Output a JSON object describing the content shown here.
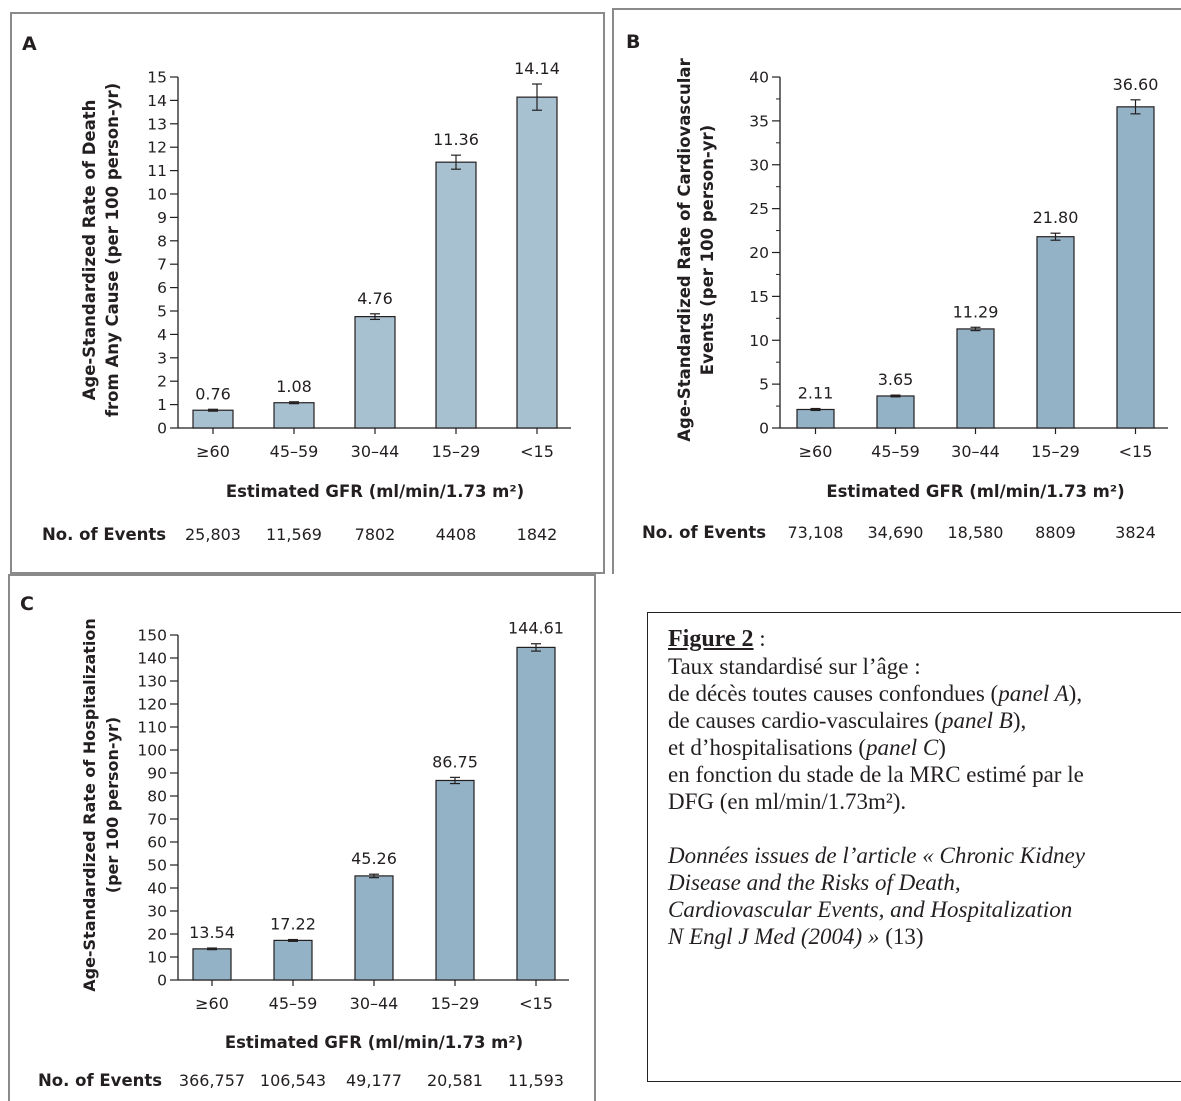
{
  "chart_data": [
    {
      "type": "bar",
      "panel": "A",
      "ylabel": [
        "Age-Standardized Rate of Death",
        "from Any Cause (per 100 person-yr)"
      ],
      "xlabel": "Estimated GFR (ml/min/1.73 m²)",
      "categories": [
        "≥60",
        "45–59",
        "30–44",
        "15–29",
        "<15"
      ],
      "values": [
        0.76,
        1.08,
        4.76,
        11.36,
        14.14
      ],
      "value_labels": [
        "0.76",
        "1.08",
        "4.76",
        "11.36",
        "14.14"
      ],
      "error_bars": [
        [
          0.72,
          0.8
        ],
        [
          1.04,
          1.12
        ],
        [
          4.64,
          4.88
        ],
        [
          11.06,
          11.66
        ],
        [
          13.58,
          14.7
        ]
      ],
      "ylim": [
        0,
        15
      ],
      "yticks": [
        "0",
        "1",
        "2",
        "3",
        "4",
        "5",
        "6",
        "7",
        "8",
        "9",
        "10",
        "11",
        "12",
        "13",
        "14",
        "15"
      ],
      "events_label": "No. of Events",
      "events": [
        "25,803",
        "11,569",
        "7802",
        "4408",
        "1842"
      ],
      "bar_color": "#a8c1d1"
    },
    {
      "type": "bar",
      "panel": "B",
      "ylabel": [
        "Age-Standardized Rate of Cardiovascular",
        "Events (per 100 person-yr)"
      ],
      "xlabel": "Estimated GFR (ml/min/1.73 m²)",
      "categories": [
        "≥60",
        "45–59",
        "30–44",
        "15–29",
        "<15"
      ],
      "values": [
        2.11,
        3.65,
        11.29,
        21.8,
        36.6
      ],
      "value_labels": [
        "2.11",
        "3.65",
        "11.29",
        "21.80",
        "36.60"
      ],
      "error_bars": [
        [
          2.0,
          2.22
        ],
        [
          3.55,
          3.75
        ],
        [
          11.1,
          11.48
        ],
        [
          21.4,
          22.2
        ],
        [
          35.8,
          37.4
        ]
      ],
      "ylim": [
        0,
        40
      ],
      "yticks": [
        "0",
        "5",
        "10",
        "15",
        "20",
        "25",
        "30",
        "35",
        "40"
      ],
      "events_label": "No. of Events",
      "events": [
        "73,108",
        "34,690",
        "18,580",
        "8809",
        "3824"
      ],
      "bar_color": "#94b2c6"
    },
    {
      "type": "bar",
      "panel": "C",
      "ylabel": [
        "Age-Standardized Rate of Hospitalization",
        "(per 100 person-yr)"
      ],
      "xlabel": "Estimated GFR (ml/min/1.73 m²)",
      "categories": [
        "≥60",
        "45–59",
        "30–44",
        "15–29",
        "<15"
      ],
      "values": [
        13.54,
        17.22,
        45.26,
        86.75,
        144.61
      ],
      "value_labels": [
        "13.54",
        "17.22",
        "45.26",
        "86.75",
        "144.61"
      ],
      "error_bars": [
        [
          13.2,
          13.9
        ],
        [
          16.8,
          17.6
        ],
        [
          44.5,
          46.0
        ],
        [
          85.4,
          88.1
        ],
        [
          143.0,
          146.2
        ]
      ],
      "ylim": [
        0,
        150
      ],
      "yticks": [
        "0",
        "10",
        "20",
        "30",
        "40",
        "50",
        "60",
        "70",
        "80",
        "90",
        "100",
        "110",
        "120",
        "130",
        "140",
        "150"
      ],
      "events_label": "No. of Events",
      "events": [
        "366,757",
        "106,543",
        "49,177",
        "20,581",
        "11,593"
      ],
      "bar_color": "#94b2c6"
    }
  ],
  "caption": {
    "title": "Figure 2",
    "title_suffix": " :",
    "line1": "Taux standardisé sur l’âge :",
    "line2_a": "de décès toutes causes confondues (",
    "line2_b": "panel A",
    "line2_c": "),",
    "line3_a": "de causes cardio-vasculaires (",
    "line3_b": "panel B",
    "line3_c": "),",
    "line4_a": "et d’hospitalisations (",
    "line4_b": "panel C",
    "line4_c": ")",
    "line5": "en fonction du stade de la MRC estimé par le",
    "line6": "DFG (en ml/min/1.73m²).",
    "source1": "Données issues de l’article « Chronic Kidney",
    "source2": "Disease and the Risks of  Death,",
    "source3": "Cardiovascular Events, and Hospitalization",
    "source4_a": "N Engl J Med (2004) »",
    "source4_b": " (13)"
  }
}
